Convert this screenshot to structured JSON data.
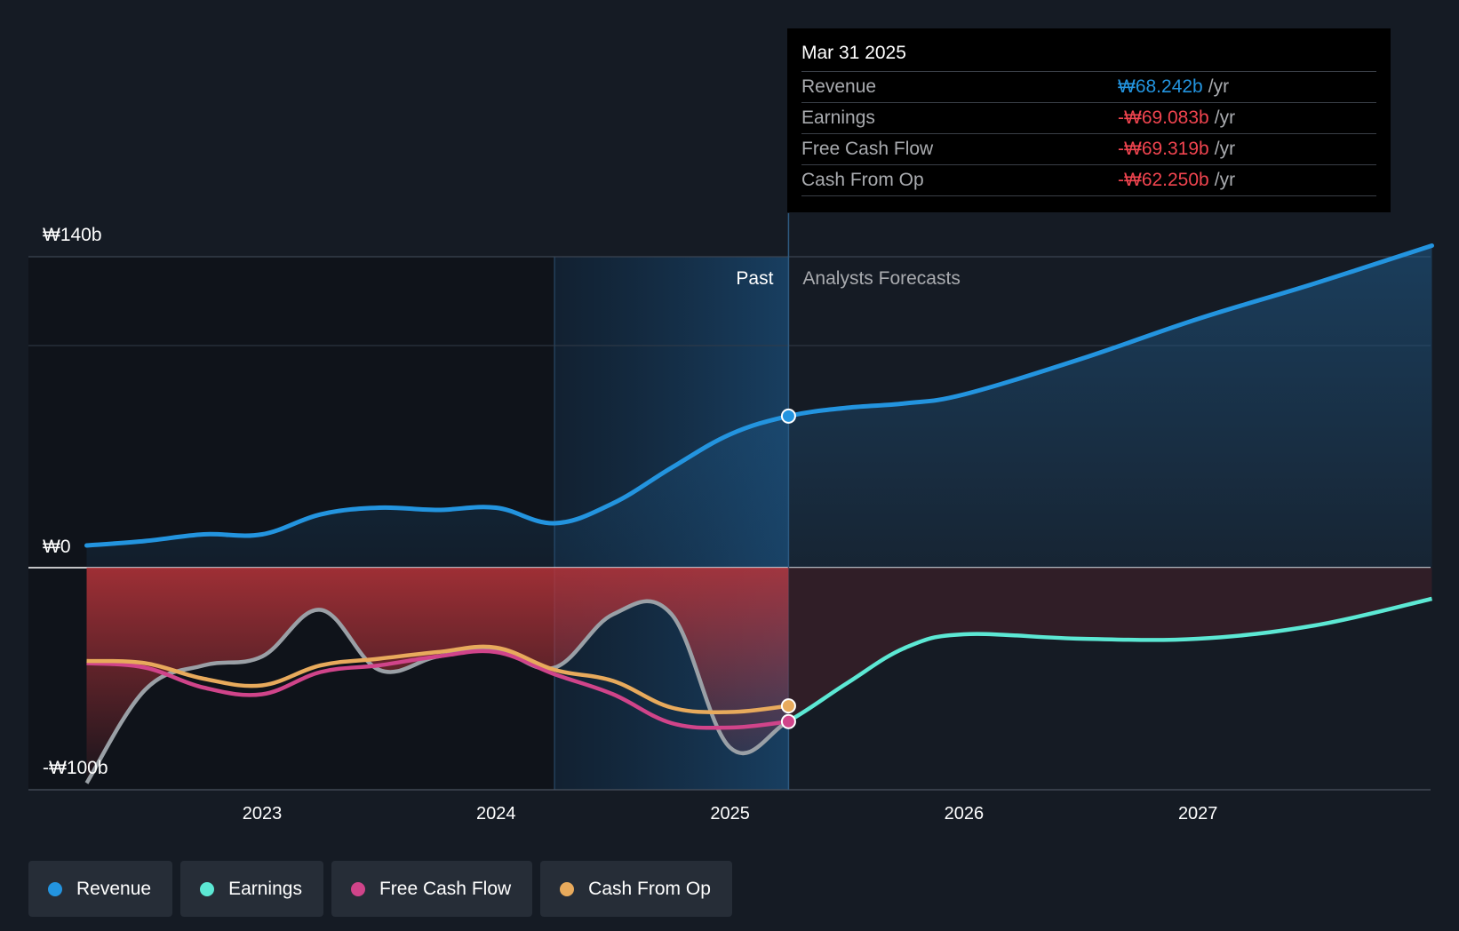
{
  "chart_data": {
    "type": "line",
    "y_tick_labels": {
      "top": "₩140b",
      "zero": "₩0",
      "bottom": "-₩100b"
    },
    "ylim": [
      -100,
      140
    ],
    "x_ticks": [
      "2023",
      "2024",
      "2025",
      "2026",
      "2027"
    ],
    "regions": {
      "past_label": "Past",
      "forecast_label": "Analysts Forecasts"
    },
    "series": [
      {
        "name": "Revenue",
        "color": "#2394df",
        "points": [
          [
            "2022.25",
            10
          ],
          [
            "2022.5",
            12
          ],
          [
            "2022.75",
            15
          ],
          [
            "2023.0",
            15
          ],
          [
            "2023.25",
            24
          ],
          [
            "2023.5",
            27
          ],
          [
            "2023.75",
            26
          ],
          [
            "2024.0",
            27
          ],
          [
            "2024.25",
            20
          ],
          [
            "2024.5",
            29
          ],
          [
            "2024.75",
            45
          ],
          [
            "2025.0",
            60
          ],
          [
            "2025.25",
            68.242
          ],
          [
            "2025.5",
            72
          ],
          [
            "2025.75",
            74
          ],
          [
            "2026.0",
            78
          ],
          [
            "2026.5",
            94
          ],
          [
            "2027.0",
            112
          ],
          [
            "2027.5",
            128
          ],
          [
            "2028.0",
            145
          ]
        ]
      },
      {
        "name": "Earnings",
        "color": "#5ce8d4",
        "points": [
          [
            "2022.25",
            -97
          ],
          [
            "2022.5",
            -55
          ],
          [
            "2022.75",
            -44
          ],
          [
            "2023.0",
            -40
          ],
          [
            "2023.25",
            -19
          ],
          [
            "2023.5",
            -46
          ],
          [
            "2023.75",
            -40
          ],
          [
            "2024.0",
            -37
          ],
          [
            "2024.25",
            -45
          ],
          [
            "2024.5",
            -21
          ],
          [
            "2024.75",
            -21
          ],
          [
            "2025.0",
            -81
          ],
          [
            "2025.25",
            -69.083
          ],
          [
            "2025.5",
            -52
          ],
          [
            "2025.75",
            -36
          ],
          [
            "2026.0",
            -30
          ],
          [
            "2026.5",
            -32
          ],
          [
            "2027.0",
            -32
          ],
          [
            "2027.5",
            -26
          ],
          [
            "2028.0",
            -14
          ]
        ]
      },
      {
        "name": "Free Cash Flow",
        "color": "#d0448a",
        "points": [
          [
            "2022.25",
            -43
          ],
          [
            "2022.5",
            -45
          ],
          [
            "2022.75",
            -54
          ],
          [
            "2023.0",
            -57
          ],
          [
            "2023.25",
            -47
          ],
          [
            "2023.5",
            -44
          ],
          [
            "2023.75",
            -40
          ],
          [
            "2024.0",
            -38
          ],
          [
            "2024.25",
            -48
          ],
          [
            "2024.5",
            -57
          ],
          [
            "2024.75",
            -70
          ],
          [
            "2025.0",
            -72
          ],
          [
            "2025.25",
            -69.319
          ]
        ]
      },
      {
        "name": "Cash From Op",
        "color": "#e8aa5c",
        "points": [
          [
            "2022.25",
            -42
          ],
          [
            "2022.5",
            -43
          ],
          [
            "2022.75",
            -50
          ],
          [
            "2023.0",
            -53
          ],
          [
            "2023.25",
            -44
          ],
          [
            "2023.5",
            -41
          ],
          [
            "2023.75",
            -38
          ],
          [
            "2024.0",
            -36
          ],
          [
            "2024.25",
            -46
          ],
          [
            "2024.5",
            -51
          ],
          [
            "2024.75",
            -63
          ],
          [
            "2025.0",
            -65
          ],
          [
            "2025.25",
            -62.25
          ]
        ]
      }
    ]
  },
  "tooltip": {
    "date": "Mar 31 2025",
    "rows": [
      {
        "label": "Revenue",
        "value": "₩68.242b",
        "unit": "/yr",
        "color": "#2394df"
      },
      {
        "label": "Earnings",
        "value": "-₩69.083b",
        "unit": "/yr",
        "color": "#f0444f"
      },
      {
        "label": "Free Cash Flow",
        "value": "-₩69.319b",
        "unit": "/yr",
        "color": "#f0444f"
      },
      {
        "label": "Cash From Op",
        "value": "-₩62.250b",
        "unit": "/yr",
        "color": "#f0444f"
      }
    ]
  },
  "legend": [
    {
      "label": "Revenue",
      "color": "#2394df"
    },
    {
      "label": "Earnings",
      "color": "#5ce8d4"
    },
    {
      "label": "Free Cash Flow",
      "color": "#d0448a"
    },
    {
      "label": "Cash From Op",
      "color": "#e8aa5c"
    }
  ]
}
